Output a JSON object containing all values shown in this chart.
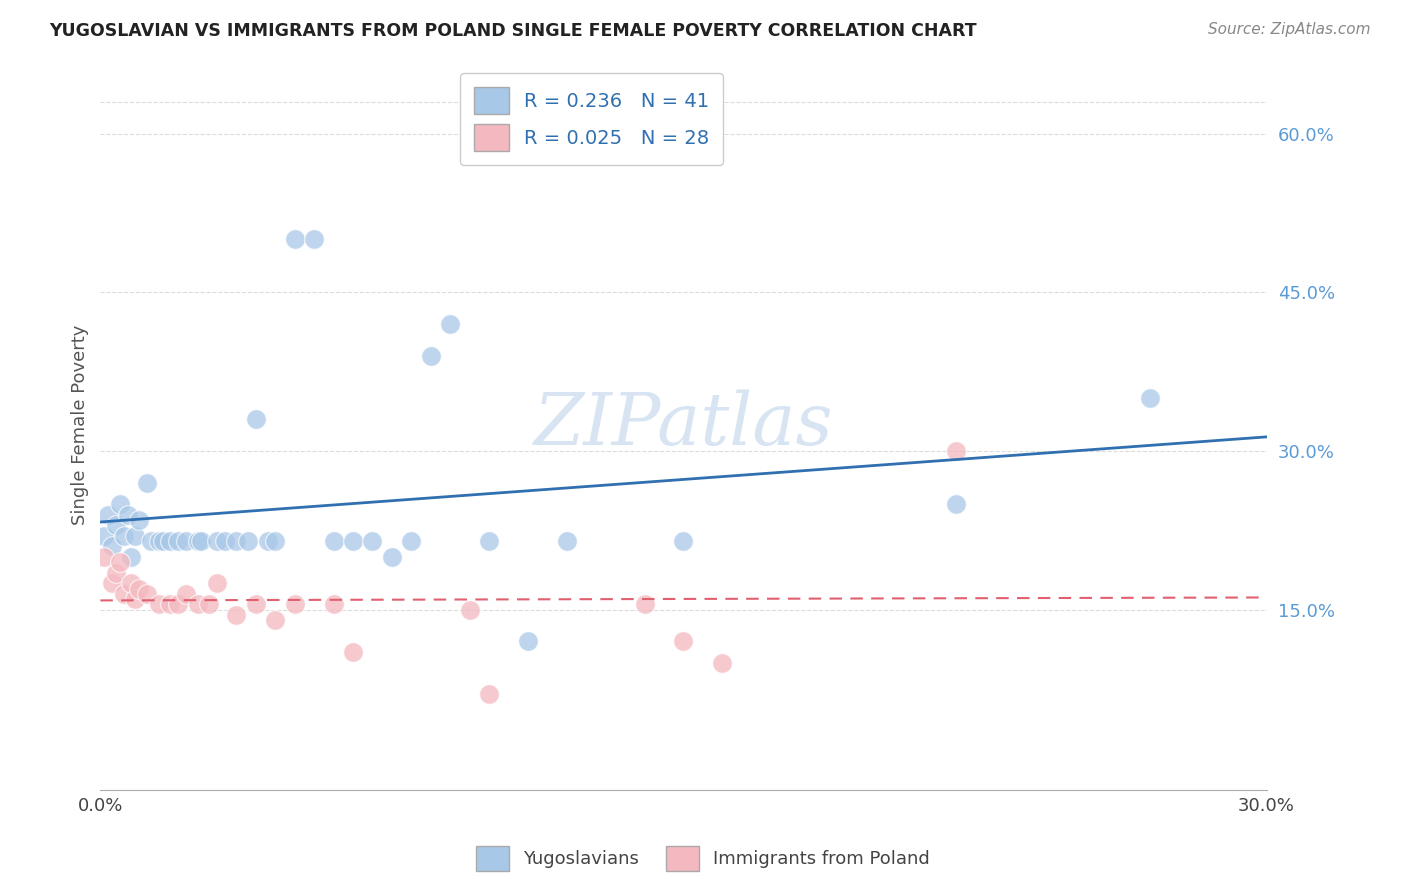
{
  "title": "YUGOSLAVIAN VS IMMIGRANTS FROM POLAND SINGLE FEMALE POVERTY CORRELATION CHART",
  "source": "Source: ZipAtlas.com",
  "ylabel": "Single Female Poverty",
  "right_yticks": [
    "15.0%",
    "30.0%",
    "45.0%",
    "60.0%"
  ],
  "right_ytick_vals": [
    0.15,
    0.3,
    0.45,
    0.6
  ],
  "xlim": [
    0.0,
    0.3
  ],
  "ylim": [
    -0.02,
    0.67
  ],
  "legend_blue_R": "R = 0.236",
  "legend_blue_N": "N = 41",
  "legend_pink_R": "R = 0.025",
  "legend_pink_N": "N = 28",
  "blue_color": "#a8c8e8",
  "pink_color": "#f4b8c0",
  "blue_line_color": "#3070b0",
  "pink_line_color": "#e06070",
  "watermark": "ZIPatlas",
  "yugoslavians_x": [
    0.001,
    0.002,
    0.003,
    0.004,
    0.005,
    0.006,
    0.007,
    0.008,
    0.009,
    0.01,
    0.012,
    0.013,
    0.015,
    0.016,
    0.018,
    0.02,
    0.022,
    0.025,
    0.026,
    0.03,
    0.032,
    0.035,
    0.038,
    0.04,
    0.043,
    0.045,
    0.05,
    0.055,
    0.06,
    0.065,
    0.07,
    0.075,
    0.08,
    0.085,
    0.09,
    0.1,
    0.11,
    0.12,
    0.15,
    0.22,
    0.27
  ],
  "yugoslavians_y": [
    0.22,
    0.24,
    0.21,
    0.23,
    0.25,
    0.22,
    0.24,
    0.2,
    0.22,
    0.235,
    0.27,
    0.215,
    0.215,
    0.215,
    0.215,
    0.215,
    0.215,
    0.215,
    0.215,
    0.215,
    0.215,
    0.215,
    0.215,
    0.33,
    0.215,
    0.215,
    0.5,
    0.5,
    0.215,
    0.215,
    0.215,
    0.2,
    0.215,
    0.39,
    0.42,
    0.215,
    0.12,
    0.215,
    0.215,
    0.25,
    0.35
  ],
  "poland_x": [
    0.001,
    0.003,
    0.004,
    0.005,
    0.006,
    0.008,
    0.009,
    0.01,
    0.012,
    0.015,
    0.018,
    0.02,
    0.022,
    0.025,
    0.028,
    0.03,
    0.035,
    0.04,
    0.045,
    0.05,
    0.06,
    0.065,
    0.095,
    0.1,
    0.14,
    0.15,
    0.16,
    0.22
  ],
  "poland_y": [
    0.2,
    0.175,
    0.185,
    0.195,
    0.165,
    0.175,
    0.16,
    0.17,
    0.165,
    0.155,
    0.155,
    0.155,
    0.165,
    0.155,
    0.155,
    0.175,
    0.145,
    0.155,
    0.14,
    0.155,
    0.155,
    0.11,
    0.15,
    0.07,
    0.155,
    0.12,
    0.1,
    0.3
  ],
  "background_color": "#ffffff",
  "grid_color": "#cccccc"
}
